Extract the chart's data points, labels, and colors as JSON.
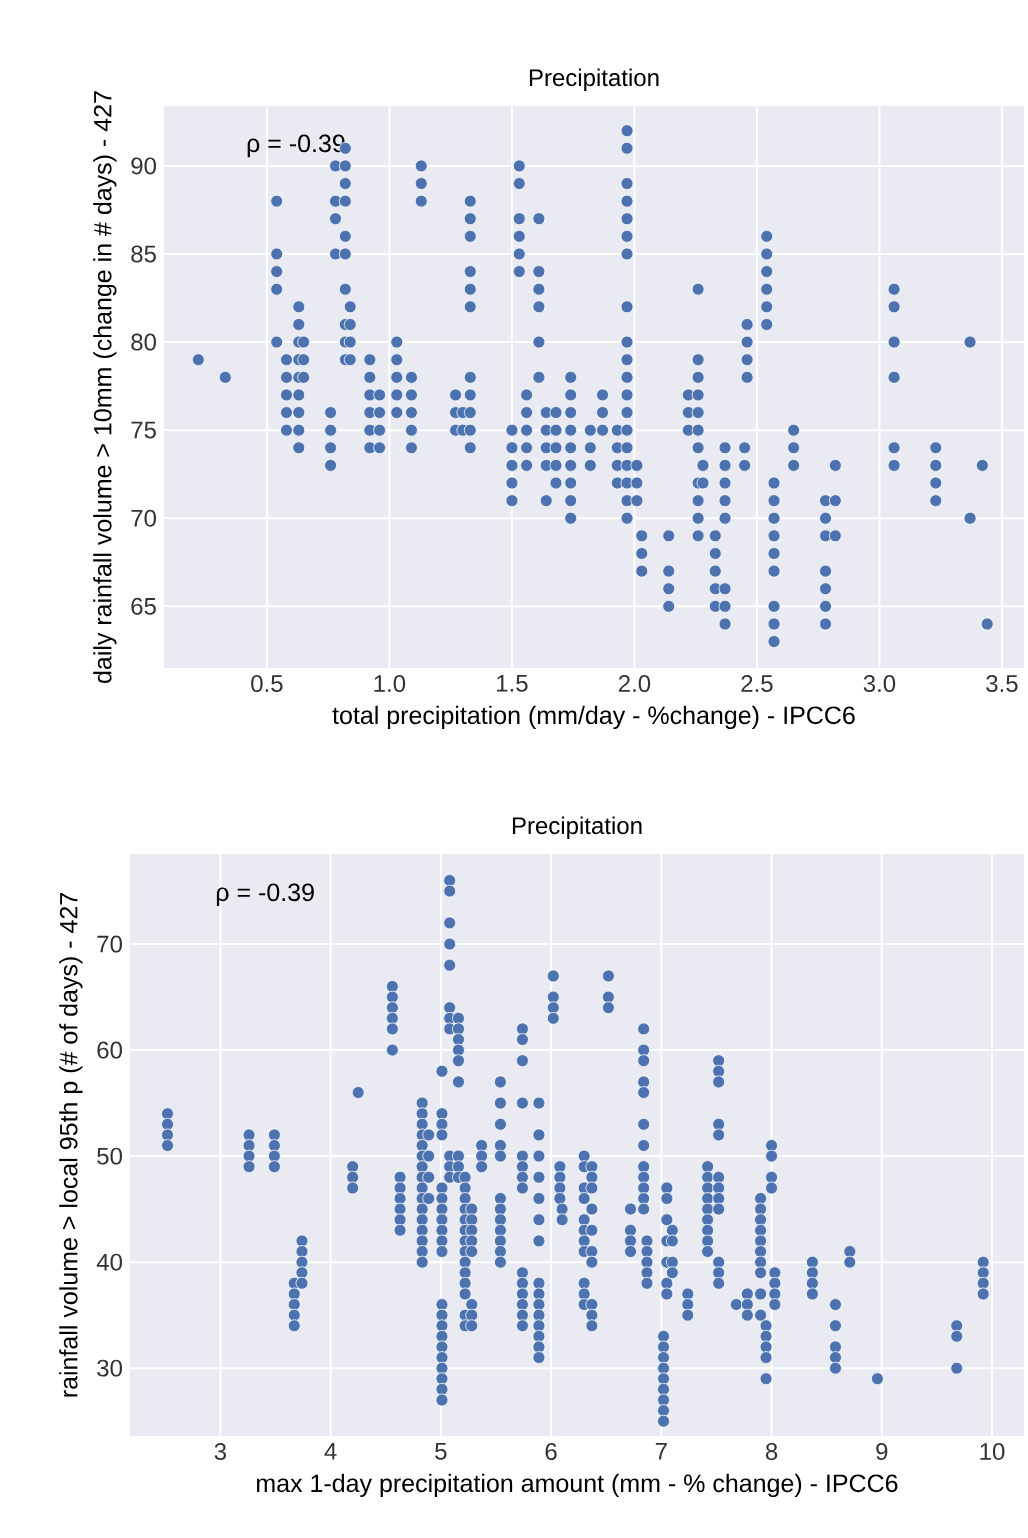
{
  "chart_data": [
    {
      "type": "scatter",
      "title": "Precipitation",
      "xlabel": "total precipitation (mm/day - %change) - IPCC6",
      "ylabel": "daily rainfall volume > 10mm (change in # days) - 427",
      "annotations": [
        "ρ = -0.39"
      ],
      "color": "#4c72b0",
      "grid": true,
      "xlim": [
        0.08,
        3.59
      ],
      "ylim": [
        61.5,
        93.4
      ],
      "xticks": [
        {
          "value": 0.5,
          "label": "0.5"
        },
        {
          "value": 1,
          "label": "1.0"
        },
        {
          "value": 1.5,
          "label": "1.5"
        },
        {
          "value": 2,
          "label": "2.0"
        },
        {
          "value": 2.5,
          "label": "2.5"
        },
        {
          "value": 3,
          "label": "3.0"
        },
        {
          "value": 3.5,
          "label": "3.5"
        }
      ],
      "yticks": [
        65,
        70,
        75,
        80,
        85,
        90
      ],
      "x": [
        0.22,
        0.33,
        0.54,
        0.54,
        0.54,
        0.54,
        0.54,
        0.58,
        0.58,
        0.58,
        0.58,
        0.58,
        0.63,
        0.63,
        0.63,
        0.63,
        0.63,
        0.63,
        0.63,
        0.63,
        0.63,
        0.65,
        0.65,
        0.65,
        0.76,
        0.76,
        0.76,
        0.76,
        0.78,
        0.78,
        0.78,
        0.78,
        0.82,
        0.82,
        0.82,
        0.82,
        0.82,
        0.82,
        0.82,
        0.82,
        0.82,
        0.82,
        0.84,
        0.84,
        0.84,
        0.84,
        0.92,
        0.92,
        0.92,
        0.92,
        0.92,
        0.92,
        0.96,
        0.96,
        0.96,
        0.96,
        1.03,
        1.03,
        1.03,
        1.03,
        1.03,
        1.09,
        1.09,
        1.09,
        1.09,
        1.09,
        1.13,
        1.13,
        1.13,
        1.27,
        1.27,
        1.27,
        1.3,
        1.3,
        1.33,
        1.33,
        1.33,
        1.33,
        1.33,
        1.33,
        1.33,
        1.33,
        1.33,
        1.33,
        1.33,
        1.5,
        1.5,
        1.5,
        1.5,
        1.5,
        1.53,
        1.53,
        1.53,
        1.53,
        1.53,
        1.53,
        1.56,
        1.56,
        1.56,
        1.56,
        1.56,
        1.61,
        1.61,
        1.61,
        1.61,
        1.61,
        1.61,
        1.64,
        1.64,
        1.64,
        1.64,
        1.64,
        1.68,
        1.68,
        1.68,
        1.68,
        1.68,
        1.74,
        1.74,
        1.74,
        1.74,
        1.74,
        1.74,
        1.74,
        1.74,
        1.74,
        1.82,
        1.82,
        1.82,
        1.87,
        1.87,
        1.87,
        1.93,
        1.93,
        1.93,
        1.93,
        1.97,
        1.97,
        1.97,
        1.97,
        1.97,
        1.97,
        1.97,
        1.97,
        1.97,
        1.97,
        1.97,
        1.97,
        1.97,
        1.97,
        1.97,
        1.97,
        1.97,
        1.97,
        1.97,
        2.01,
        2.01,
        2.01,
        2.03,
        2.03,
        2.03,
        2.14,
        2.14,
        2.14,
        2.14,
        2.22,
        2.22,
        2.22,
        2.26,
        2.26,
        2.26,
        2.26,
        2.26,
        2.26,
        2.26,
        2.26,
        2.26,
        2.26,
        2.26,
        2.28,
        2.28,
        2.33,
        2.33,
        2.33,
        2.33,
        2.33,
        2.37,
        2.37,
        2.37,
        2.37,
        2.37,
        2.37,
        2.37,
        2.37,
        2.45,
        2.45,
        2.46,
        2.46,
        2.46,
        2.46,
        2.54,
        2.54,
        2.54,
        2.54,
        2.54,
        2.54,
        2.57,
        2.57,
        2.57,
        2.57,
        2.57,
        2.57,
        2.57,
        2.57,
        2.57,
        2.65,
        2.65,
        2.65,
        2.78,
        2.78,
        2.78,
        2.78,
        2.78,
        2.78,
        2.78,
        2.82,
        2.82,
        2.82,
        3.06,
        3.06,
        3.06,
        3.06,
        3.06,
        3.06,
        3.23,
        3.23,
        3.23,
        3.23,
        3.37,
        3.37,
        3.42,
        3.44
      ],
      "values": [
        79,
        78,
        88,
        85,
        84,
        83,
        80,
        79,
        78,
        77,
        76,
        75,
        82,
        81,
        80,
        79,
        78,
        77,
        76,
        75,
        74,
        80,
        79,
        78,
        76,
        75,
        74,
        73,
        90,
        88,
        87,
        85,
        91,
        90,
        89,
        88,
        86,
        85,
        83,
        81,
        80,
        79,
        82,
        81,
        80,
        79,
        79,
        78,
        77,
        76,
        75,
        74,
        77,
        76,
        75,
        74,
        80,
        79,
        78,
        77,
        76,
        78,
        77,
        76,
        75,
        74,
        90,
        89,
        88,
        77,
        76,
        75,
        76,
        75,
        88,
        87,
        86,
        84,
        83,
        82,
        78,
        77,
        76,
        75,
        74,
        75,
        74,
        73,
        72,
        71,
        90,
        89,
        87,
        86,
        85,
        84,
        77,
        76,
        75,
        74,
        73,
        87,
        84,
        83,
        82,
        80,
        78,
        76,
        75,
        74,
        73,
        71,
        76,
        75,
        74,
        73,
        72,
        78,
        77,
        76,
        75,
        74,
        73,
        72,
        71,
        70,
        75,
        74,
        73,
        77,
        76,
        75,
        75,
        74,
        73,
        72,
        92,
        91,
        89,
        88,
        87,
        86,
        85,
        82,
        80,
        79,
        78,
        77,
        76,
        75,
        74,
        73,
        72,
        71,
        70,
        73,
        72,
        71,
        69,
        68,
        67,
        69,
        67,
        66,
        65,
        77,
        76,
        75,
        83,
        79,
        78,
        77,
        76,
        75,
        74,
        72,
        71,
        70,
        69,
        73,
        72,
        69,
        68,
        67,
        66,
        65,
        74,
        73,
        72,
        71,
        70,
        66,
        65,
        64,
        74,
        73,
        81,
        80,
        79,
        78,
        86,
        85,
        84,
        83,
        82,
        81,
        72,
        71,
        70,
        69,
        68,
        67,
        65,
        64,
        63,
        75,
        74,
        73,
        71,
        70,
        69,
        67,
        66,
        65,
        64,
        73,
        71,
        69,
        83,
        82,
        80,
        78,
        74,
        73,
        74,
        73,
        72,
        71,
        80,
        70,
        73,
        64
      ]
    },
    {
      "type": "scatter",
      "title": "Precipitation",
      "xlabel": "max 1-day precipitation amount (mm - % change) - IPCC6",
      "ylabel": "rainfall volume > local 95th p (# of days) - 427",
      "annotations": [
        "ρ = -0.39"
      ],
      "color": "#4c72b0",
      "grid": true,
      "xlim": [
        2.18,
        10.29
      ],
      "ylim": [
        23.6,
        78.5
      ],
      "xticks": [
        3,
        4,
        5,
        6,
        7,
        8,
        9,
        10
      ],
      "yticks": [
        30,
        40,
        50,
        60,
        70
      ],
      "x": [
        2.52,
        2.52,
        2.52,
        2.52,
        3.26,
        3.26,
        3.26,
        3.26,
        3.49,
        3.49,
        3.49,
        3.49,
        3.67,
        3.67,
        3.67,
        3.67,
        3.67,
        3.74,
        3.74,
        3.74,
        3.74,
        3.74,
        4.2,
        4.2,
        4.2,
        4.25,
        4.56,
        4.56,
        4.56,
        4.56,
        4.56,
        4.56,
        4.63,
        4.63,
        4.63,
        4.63,
        4.63,
        4.63,
        4.83,
        4.83,
        4.83,
        4.83,
        4.83,
        4.83,
        4.83,
        4.83,
        4.83,
        4.83,
        4.83,
        4.83,
        4.83,
        4.83,
        4.83,
        4.83,
        4.89,
        4.89,
        4.89,
        4.89,
        5.01,
        5.01,
        5.01,
        5.01,
        5.01,
        5.01,
        5.01,
        5.01,
        5.01,
        5.01,
        5.01,
        5.01,
        5.01,
        5.01,
        5.01,
        5.01,
        5.01,
        5.01,
        5.01,
        5.01,
        5.01,
        5.08,
        5.08,
        5.08,
        5.08,
        5.08,
        5.08,
        5.08,
        5.08,
        5.08,
        5.08,
        5.08,
        5.16,
        5.16,
        5.16,
        5.16,
        5.16,
        5.16,
        5.16,
        5.16,
        5.16,
        5.22,
        5.22,
        5.22,
        5.22,
        5.22,
        5.22,
        5.22,
        5.22,
        5.22,
        5.22,
        5.22,
        5.22,
        5.22,
        5.22,
        5.28,
        5.28,
        5.28,
        5.28,
        5.28,
        5.28,
        5.28,
        5.28,
        5.37,
        5.37,
        5.37,
        5.54,
        5.54,
        5.54,
        5.54,
        5.54,
        5.54,
        5.54,
        5.54,
        5.54,
        5.54,
        5.54,
        5.54,
        5.74,
        5.74,
        5.74,
        5.74,
        5.74,
        5.74,
        5.74,
        5.74,
        5.74,
        5.74,
        5.74,
        5.74,
        5.74,
        5.74,
        5.89,
        5.89,
        5.89,
        5.89,
        5.89,
        5.89,
        5.89,
        5.89,
        5.89,
        5.89,
        5.89,
        5.89,
        5.89,
        5.89,
        5.89,
        6.02,
        6.02,
        6.02,
        6.02,
        6.08,
        6.08,
        6.08,
        6.08,
        6.1,
        6.1,
        6.3,
        6.3,
        6.3,
        6.3,
        6.3,
        6.3,
        6.3,
        6.3,
        6.3,
        6.3,
        6.3,
        6.37,
        6.37,
        6.37,
        6.37,
        6.37,
        6.37,
        6.37,
        6.37,
        6.37,
        6.37,
        6.52,
        6.52,
        6.52,
        6.72,
        6.72,
        6.72,
        6.72,
        6.84,
        6.84,
        6.84,
        6.84,
        6.84,
        6.84,
        6.84,
        6.84,
        6.84,
        6.84,
        6.84,
        6.84,
        6.87,
        6.87,
        6.87,
        6.87,
        6.87,
        7.02,
        7.02,
        7.02,
        7.02,
        7.02,
        7.02,
        7.02,
        7.02,
        7.02,
        7.05,
        7.05,
        7.05,
        7.05,
        7.05,
        7.05,
        7.05,
        7.1,
        7.1,
        7.1,
        7.1,
        7.24,
        7.24,
        7.24,
        7.42,
        7.42,
        7.42,
        7.42,
        7.42,
        7.42,
        7.42,
        7.42,
        7.42,
        7.52,
        7.52,
        7.52,
        7.52,
        7.52,
        7.52,
        7.52,
        7.52,
        7.52,
        7.52,
        7.52,
        7.52,
        7.68,
        7.78,
        7.78,
        7.78,
        7.9,
        7.9,
        7.9,
        7.9,
        7.9,
        7.9,
        7.9,
        7.9,
        7.9,
        7.9,
        7.95,
        7.95,
        7.95,
        7.95,
        7.95,
        8.0,
        8.0,
        8.0,
        8.0,
        8.03,
        8.03,
        8.03,
        8.03,
        8.37,
        8.37,
        8.37,
        8.37,
        8.58,
        8.58,
        8.58,
        8.58,
        8.58,
        8.71,
        8.71,
        8.96,
        9.68,
        9.68,
        9.68,
        9.92,
        9.92,
        9.92,
        9.92
      ],
      "values": [
        54,
        53,
        52,
        51,
        52,
        51,
        50,
        49,
        52,
        51,
        50,
        49,
        38,
        37,
        36,
        35,
        34,
        42,
        41,
        40,
        39,
        38,
        49,
        48,
        47,
        56,
        66,
        65,
        64,
        63,
        62,
        60,
        48,
        47,
        46,
        45,
        44,
        43,
        55,
        54,
        53,
        52,
        51,
        50,
        49,
        48,
        47,
        46,
        45,
        44,
        43,
        42,
        41,
        40,
        52,
        50,
        48,
        46,
        58,
        54,
        53,
        52,
        47,
        46,
        45,
        44,
        43,
        42,
        41,
        36,
        35,
        34,
        33,
        32,
        31,
        30,
        29,
        28,
        27,
        76,
        75,
        72,
        70,
        68,
        64,
        63,
        62,
        50,
        49,
        48,
        63,
        62,
        61,
        60,
        59,
        57,
        50,
        49,
        48,
        48,
        47,
        46,
        45,
        44,
        43,
        42,
        41,
        40,
        39,
        38,
        37,
        35,
        34,
        45,
        44,
        43,
        42,
        41,
        36,
        35,
        34,
        51,
        50,
        49,
        57,
        55,
        53,
        51,
        50,
        46,
        45,
        44,
        43,
        42,
        41,
        40,
        62,
        61,
        59,
        55,
        50,
        49,
        48,
        47,
        39,
        38,
        37,
        36,
        35,
        34,
        55,
        52,
        50,
        48,
        46,
        44,
        42,
        38,
        37,
        36,
        35,
        34,
        33,
        32,
        31,
        67,
        65,
        64,
        63,
        49,
        48,
        47,
        46,
        45,
        44,
        50,
        49,
        47,
        46,
        44,
        43,
        42,
        41,
        38,
        37,
        36,
        49,
        48,
        47,
        45,
        43,
        41,
        40,
        36,
        35,
        34,
        67,
        65,
        64,
        45,
        43,
        42,
        41,
        62,
        60,
        59,
        57,
        56,
        53,
        51,
        49,
        48,
        47,
        46,
        45,
        42,
        41,
        40,
        39,
        38,
        33,
        32,
        31,
        30,
        29,
        28,
        27,
        26,
        25,
        47,
        46,
        44,
        42,
        40,
        38,
        37,
        43,
        42,
        40,
        39,
        37,
        36,
        35,
        49,
        48,
        47,
        46,
        45,
        44,
        43,
        42,
        41,
        59,
        58,
        57,
        53,
        52,
        48,
        47,
        46,
        45,
        40,
        39,
        38,
        36,
        37,
        36,
        35,
        46,
        45,
        44,
        43,
        42,
        41,
        40,
        39,
        37,
        35,
        34,
        33,
        32,
        31,
        29,
        51,
        50,
        48,
        47,
        39,
        38,
        37,
        36,
        40,
        39,
        38,
        37,
        36,
        34,
        32,
        31,
        30,
        41,
        40,
        29,
        34,
        33,
        30,
        40,
        39,
        38,
        37
      ]
    }
  ]
}
